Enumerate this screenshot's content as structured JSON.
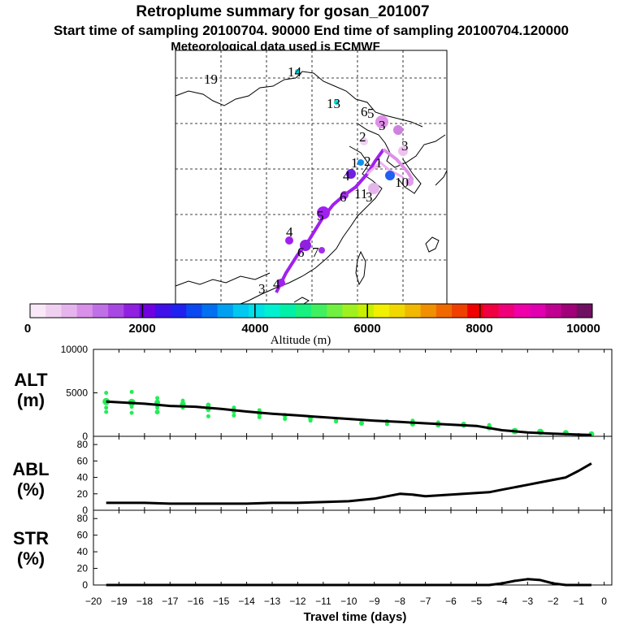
{
  "title": {
    "line1": "Retroplume summary for gosan_201007",
    "line2": "Start time of sampling 20100704. 90000     End time of sampling 20100704.120000",
    "line3": "Meteorological data used is ECMWF"
  },
  "map": {
    "day_labels": [
      "19",
      "14",
      "13",
      "6",
      "5",
      "3",
      "2",
      "1",
      "1",
      "3",
      "2",
      "10",
      "11",
      "3",
      "4",
      "6",
      "4",
      "5",
      "6",
      "7",
      "3",
      "4"
    ]
  },
  "colorbar": {
    "ticks": [
      "0",
      "2000",
      "4000",
      "6000",
      "8000",
      "10000"
    ],
    "label": "Altitude (m)",
    "colors": [
      "#f8e8f8",
      "#f0d0f0",
      "#e6b4ec",
      "#d890e8",
      "#c070e6",
      "#a848e2",
      "#9020e0",
      "#7000e0",
      "#4010e8",
      "#2020f0",
      "#0a48f0",
      "#0070f0",
      "#00a0f0",
      "#00c8f0",
      "#00e0e8",
      "#00f0d0",
      "#00f0a8",
      "#18f080",
      "#40f060",
      "#70f040",
      "#a0f020",
      "#c8f000",
      "#f0f000",
      "#f0d800",
      "#f0b800",
      "#f09000",
      "#f06800",
      "#f04000",
      "#f00000",
      "#f00040",
      "#f00078",
      "#f000a8",
      "#e000b0",
      "#c00090",
      "#a00078",
      "#701060"
    ]
  },
  "chart_data": [
    {
      "type": "line",
      "panel_label": "ALT",
      "panel_unit": "(m)",
      "ylim": [
        0,
        10000
      ],
      "yticks": [
        "0",
        "5000",
        "10000"
      ],
      "x": [
        -19.5,
        -18,
        -17,
        -16,
        -15,
        -14,
        -13,
        -12,
        -11,
        -10,
        -9,
        -8,
        -7,
        -6,
        -5,
        -4,
        -3,
        -2,
        -1,
        -0.5
      ],
      "y": [
        4000,
        3750,
        3500,
        3400,
        3150,
        2850,
        2600,
        2400,
        2200,
        2000,
        1800,
        1650,
        1500,
        1350,
        1200,
        700,
        450,
        300,
        200,
        150
      ],
      "scatter_x": [
        -19.5,
        -19.5,
        -19.5,
        -19.5,
        -18.5,
        -18.5,
        -18.5,
        -18.5,
        -17.5,
        -17.5,
        -17.5,
        -17.5,
        -16.5,
        -16.5,
        -16.5,
        -15.5,
        -15.5,
        -15.5,
        -15.5,
        -14.5,
        -14.5,
        -14.5,
        -13.5,
        -13.5,
        -13.5,
        -12.5,
        -12.5,
        -11.5,
        -11.5,
        -10.5,
        -10.5,
        -9.5,
        -9.5,
        -8.5,
        -8.5,
        -7.5,
        -7.5,
        -6.5,
        -6.5,
        -5.5,
        -5.5,
        -4.5,
        -4.5,
        -3.5,
        -2.5,
        -1.5,
        -0.5
      ],
      "scatter_y": [
        4000,
        5000,
        3300,
        2800,
        3900,
        5100,
        3400,
        2700,
        3900,
        4400,
        3300,
        2800,
        3700,
        4100,
        3300,
        3600,
        3000,
        2300,
        3200,
        2900,
        3300,
        2400,
        2600,
        3000,
        2200,
        2400,
        2000,
        2100,
        1800,
        1900,
        1700,
        1500,
        1800,
        1700,
        1400,
        1400,
        1800,
        1300,
        1600,
        1400,
        1200,
        1000,
        1300,
        600,
        500,
        400,
        250
      ],
      "scatter_sizes": [
        7,
        3,
        3,
        3,
        7,
        3,
        3,
        3,
        5,
        3,
        3,
        4,
        5,
        3,
        3,
        4,
        3,
        3,
        5,
        4,
        3,
        3,
        4,
        3,
        3,
        4,
        3,
        4,
        3,
        3,
        3,
        4,
        3,
        4,
        3,
        4,
        3,
        4,
        3,
        4,
        3,
        5,
        3,
        6,
        6,
        5,
        5
      ],
      "xlim": [
        -20,
        0.3
      ],
      "line_color": "#000000",
      "scatter_color": "#22ee55"
    },
    {
      "type": "line",
      "panel_label": "ABL",
      "panel_unit": "(%)",
      "ylim": [
        0,
        90
      ],
      "yticks": [
        "0",
        "20",
        "40",
        "60",
        "80"
      ],
      "x": [
        -19.5,
        -18,
        -17,
        -16,
        -15,
        -14,
        -13,
        -12,
        -11,
        -10,
        -9,
        -8.5,
        -8,
        -7.5,
        -7,
        -6.5,
        -6,
        -5.5,
        -5,
        -4.5,
        -4,
        -3.5,
        -3,
        -2.5,
        -2,
        -1.5,
        -1,
        -0.5
      ],
      "y": [
        9,
        9,
        8,
        8,
        8,
        8,
        9,
        9,
        10,
        11,
        14,
        17,
        20,
        19,
        17,
        18,
        19,
        20,
        21,
        22,
        25,
        28,
        31,
        34,
        37,
        40,
        48,
        57
      ],
      "xlim": [
        -20,
        0.3
      ],
      "line_color": "#000000"
    },
    {
      "type": "line",
      "panel_label": "STR",
      "panel_unit": "(%)",
      "ylim": [
        0,
        90
      ],
      "yticks": [
        "0",
        "20",
        "40",
        "60",
        "80"
      ],
      "x": [
        -19.5,
        -18,
        -16,
        -14,
        -12,
        -10,
        -8,
        -6,
        -5,
        -4.5,
        -4,
        -3.5,
        -3,
        -2.5,
        -2,
        -1.5,
        -1,
        -0.5
      ],
      "y": [
        0,
        0,
        0,
        0,
        0,
        0,
        0,
        0,
        0,
        0,
        2,
        5,
        7,
        6,
        2,
        0,
        0,
        0
      ],
      "xlim": [
        -20,
        0.3
      ],
      "line_color": "#000000",
      "xticks": [
        "−20",
        "−19",
        "−18",
        "−17",
        "−16",
        "−15",
        "−14",
        "−13",
        "−12",
        "−11",
        "−10",
        "−9",
        "−8",
        "−7",
        "−6",
        "−5",
        "−4",
        "−3",
        "−2",
        "−1",
        "0"
      ],
      "xlabel": "Travel time (days)"
    }
  ]
}
